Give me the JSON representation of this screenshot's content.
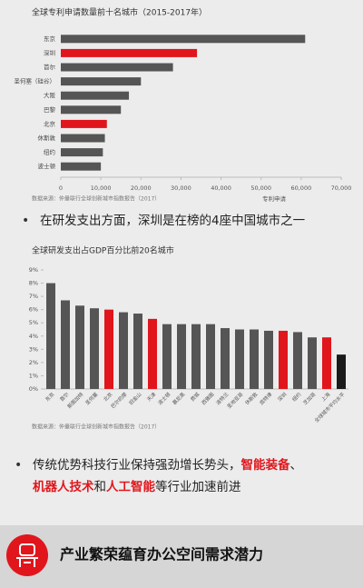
{
  "chart_data": [
    {
      "type": "hbar",
      "title": "全球专利申请数量前十名城市（2015-2017年）",
      "categories": [
        "东京",
        "深圳",
        "首尔",
        "圣何塞（硅谷）",
        "大阪",
        "巴黎",
        "北京",
        "休斯敦",
        "纽约",
        "波士顿"
      ],
      "values": [
        61000,
        34000,
        28000,
        20000,
        17000,
        15000,
        11500,
        11000,
        10500,
        10000
      ],
      "colors": [
        "#555555",
        "#e0161c",
        "#555555",
        "#555555",
        "#555555",
        "#555555",
        "#e0161c",
        "#555555",
        "#555555",
        "#555555"
      ],
      "xlim": [
        0,
        70000
      ],
      "xticks": [
        0,
        {
          "value": 10000,
          "label": "10,000"
        },
        {
          "value": 20000,
          "label": "20,000"
        },
        {
          "value": 30000,
          "label": "30,000"
        },
        {
          "value": 40000,
          "label": "40,000"
        },
        {
          "value": 50000,
          "label": "50,000"
        },
        {
          "value": 60000,
          "label": "60,000"
        },
        {
          "value": 70000,
          "label": "70,000"
        }
      ],
      "x_label": "专利申请",
      "source": "数据来源：仲量联行全球创新城市指数报告（2017）"
    },
    {
      "type": "bar",
      "title": "全球研发支出占GDP百分比前20名城市",
      "categories": [
        "东京",
        "首尔",
        "斯图加特",
        "圣何塞",
        "北京",
        "巴尔的摩",
        "旧金山",
        "天津",
        "波士顿",
        "慕尼黑",
        "费城",
        "西雅图",
        "波特兰",
        "圣地亚哥",
        "休斯敦",
        "底特律",
        "深圳",
        "纽约",
        "芝加哥",
        "上海",
        "全球城市平均水平"
      ],
      "values": [
        8.0,
        6.7,
        6.3,
        6.1,
        6.0,
        5.8,
        5.7,
        5.3,
        4.9,
        4.9,
        4.9,
        4.9,
        4.6,
        4.5,
        4.5,
        4.4,
        4.4,
        4.3,
        3.9,
        3.9,
        2.6
      ],
      "colors": [
        "#555555",
        "#555555",
        "#555555",
        "#555555",
        "#e0161c",
        "#555555",
        "#555555",
        "#e0161c",
        "#555555",
        "#555555",
        "#555555",
        "#555555",
        "#555555",
        "#555555",
        "#555555",
        "#555555",
        "#e0161c",
        "#555555",
        "#555555",
        "#e0161c",
        "#1a1a1a"
      ],
      "ylim": [
        0,
        9
      ],
      "yticks": [
        {
          "value": 0,
          "label": "0%"
        },
        {
          "value": 1,
          "label": "1%"
        },
        {
          "value": 2,
          "label": "2%"
        },
        {
          "value": 3,
          "label": "3%"
        },
        {
          "value": 4,
          "label": "4%"
        },
        {
          "value": 5,
          "label": "5%"
        },
        {
          "value": 6,
          "label": "6%"
        },
        {
          "value": 7,
          "label": "7%"
        },
        {
          "value": 8,
          "label": "8%"
        },
        {
          "value": 9,
          "label": "9%"
        }
      ],
      "source": "数据来源：仲量联行全球创新城市指数报告（2017）"
    }
  ],
  "bullet_1": "在研发支出方面，深圳是在榜的4座中国城市之一",
  "bullet_2": [
    {
      "text": "传统优势科技行业保持强劲增长势头，",
      "color": "#222222"
    },
    {
      "text": "智能装备",
      "color": "#e0161c"
    },
    {
      "text": "、",
      "color": "#222222"
    },
    {
      "text": "机器人技术",
      "color": "#e0161c"
    },
    {
      "text": "和",
      "color": "#222222"
    },
    {
      "text": "人工智能",
      "color": "#e0161c"
    },
    {
      "text": "等行业加速前进",
      "color": "#222222"
    }
  ],
  "footer": "产业繁荣蕴育办公空间需求潜力"
}
